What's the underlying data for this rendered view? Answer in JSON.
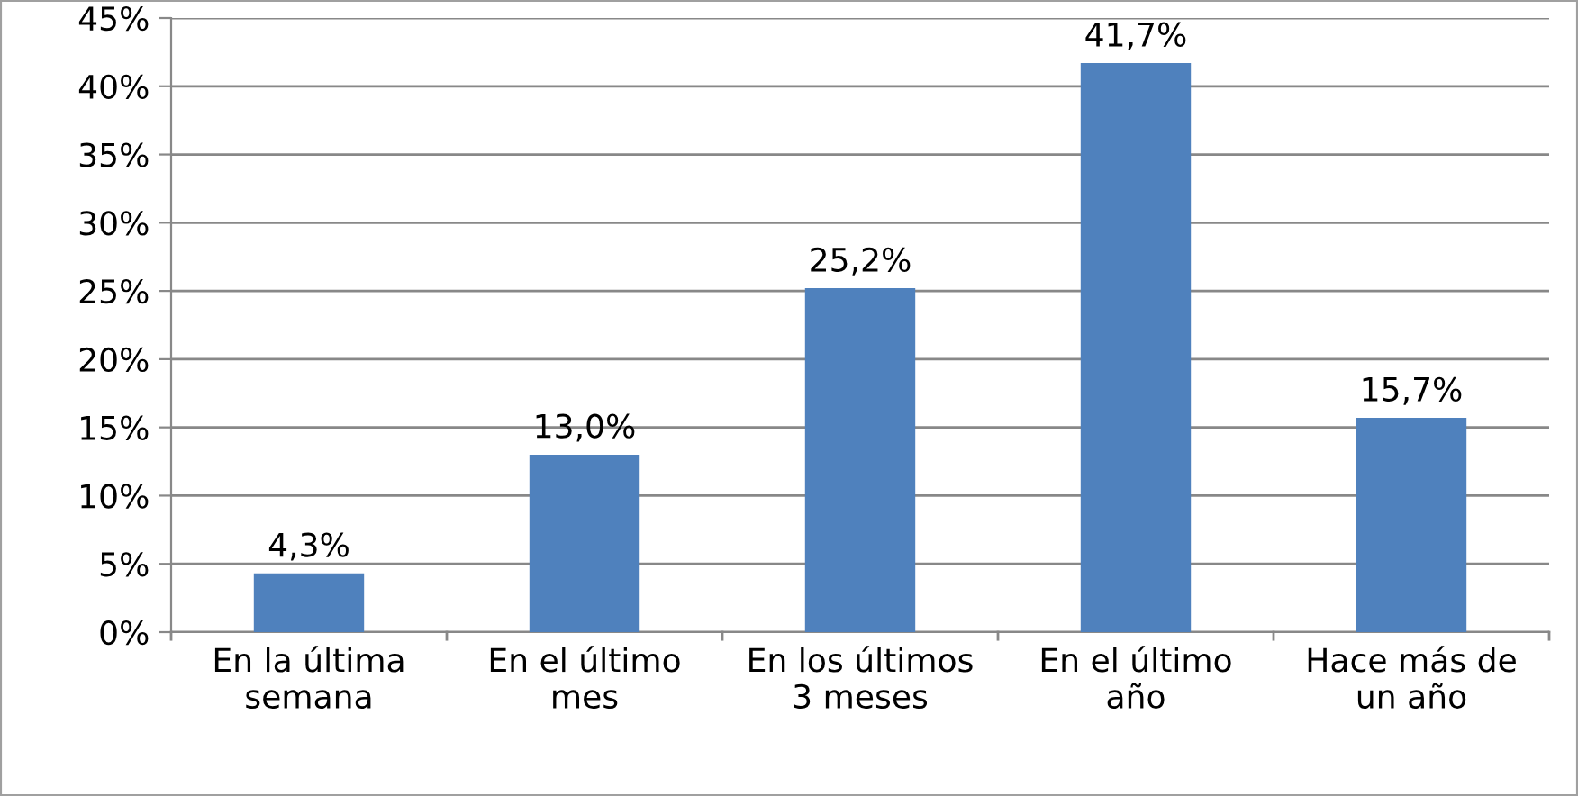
{
  "chart_data": {
    "type": "bar",
    "categories": [
      "En la última\nsemana",
      "En el último\nmes",
      "En los últimos\n3 meses",
      "En el último\naño",
      "Hace más de\nun año"
    ],
    "values": [
      4.3,
      13.0,
      25.2,
      41.7,
      15.7
    ],
    "value_labels": [
      "4,3%",
      "13,0%",
      "25,2%",
      "41,7%",
      "15,7%"
    ],
    "color": "#4f81bd",
    "ylim": [
      0,
      45
    ],
    "yticks": [
      {
        "value": 0,
        "label": "0%"
      },
      {
        "value": 5,
        "label": "5%"
      },
      {
        "value": 10,
        "label": "10%"
      },
      {
        "value": 15,
        "label": "15%"
      },
      {
        "value": 20,
        "label": "20%"
      },
      {
        "value": 25,
        "label": "25%"
      },
      {
        "value": 30,
        "label": "30%"
      },
      {
        "value": 35,
        "label": "35%"
      },
      {
        "value": 40,
        "label": "40%"
      },
      {
        "value": 45,
        "label": "45%"
      }
    ],
    "grid": "y",
    "legend": false
  }
}
